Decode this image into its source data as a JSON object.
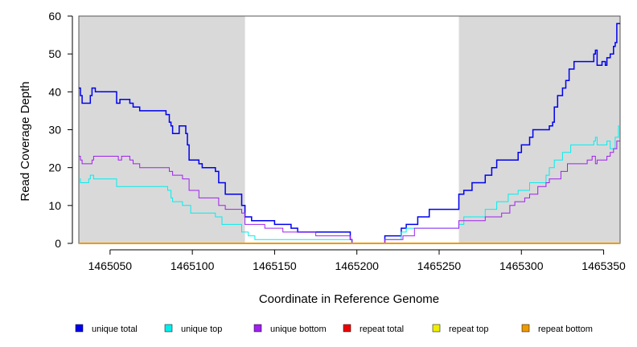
{
  "chart_data": {
    "type": "line",
    "title": "",
    "xlabel": "Coordinate in Reference Genome",
    "ylabel": "Read Coverage Depth",
    "xlim": [
      1465031,
      1465360
    ],
    "ylim": [
      0,
      60
    ],
    "x_ticks": [
      1465050,
      1465100,
      1465150,
      1465200,
      1465250,
      1465300,
      1465350
    ],
    "x_tick_labels": [
      "1465050",
      "1465100",
      "1465150",
      "1465200",
      "1465250",
      "1465300",
      "1465350"
    ],
    "y_ticks": [
      0,
      10,
      20,
      30,
      40,
      50,
      60
    ],
    "y_tick_labels": [
      "0",
      "10",
      "20",
      "30",
      "40",
      "50",
      "60"
    ],
    "shaded_regions": [
      [
        1465031,
        1465132
      ],
      [
        1465262,
        1465360
      ]
    ],
    "shade_color": "#d9d9d9",
    "legend": [
      {
        "name": "unique total",
        "color": "#0000ee"
      },
      {
        "name": "unique top",
        "color": "#00eeee"
      },
      {
        "name": "unique bottom",
        "color": "#a020f0"
      },
      {
        "name": "repeat total",
        "color": "#ee0000"
      },
      {
        "name": "repeat top",
        "color": "#eeee00"
      },
      {
        "name": "repeat bottom",
        "color": "#ee9a00"
      }
    ],
    "series": [
      {
        "name": "unique total",
        "color": "#0000ee",
        "width": 1.5,
        "points": [
          [
            1465031,
            41
          ],
          [
            1465032,
            39
          ],
          [
            1465033,
            37
          ],
          [
            1465038,
            39
          ],
          [
            1465039,
            41
          ],
          [
            1465041,
            40
          ],
          [
            1465054,
            37
          ],
          [
            1465056,
            38
          ],
          [
            1465062,
            37
          ],
          [
            1465064,
            36
          ],
          [
            1465068,
            35
          ],
          [
            1465084,
            34
          ],
          [
            1465086,
            32
          ],
          [
            1465087,
            31
          ],
          [
            1465088,
            29
          ],
          [
            1465092,
            31
          ],
          [
            1465096,
            29
          ],
          [
            1465097,
            26
          ],
          [
            1465098,
            22
          ],
          [
            1465104,
            21
          ],
          [
            1465106,
            20
          ],
          [
            1465114,
            19
          ],
          [
            1465116,
            16
          ],
          [
            1465120,
            13
          ],
          [
            1465130,
            10
          ],
          [
            1465132,
            7
          ],
          [
            1465136,
            6
          ],
          [
            1465150,
            5
          ],
          [
            1465160,
            4
          ],
          [
            1465164,
            3
          ],
          [
            1465196,
            1
          ],
          [
            1465197,
            0
          ],
          [
            1465214,
            0
          ],
          [
            1465217,
            2
          ],
          [
            1465227,
            4
          ],
          [
            1465230,
            5
          ],
          [
            1465237,
            7
          ],
          [
            1465244,
            9
          ],
          [
            1465262,
            13
          ],
          [
            1465265,
            14
          ],
          [
            1465270,
            16
          ],
          [
            1465278,
            18
          ],
          [
            1465282,
            20
          ],
          [
            1465285,
            22
          ],
          [
            1465298,
            24
          ],
          [
            1465300,
            26
          ],
          [
            1465305,
            28
          ],
          [
            1465307,
            30
          ],
          [
            1465317,
            31
          ],
          [
            1465319,
            32
          ],
          [
            1465320,
            36
          ],
          [
            1465322,
            39
          ],
          [
            1465325,
            41
          ],
          [
            1465327,
            43
          ],
          [
            1465329,
            46
          ],
          [
            1465332,
            48
          ],
          [
            1465344,
            50
          ],
          [
            1465345,
            51
          ],
          [
            1465346,
            47
          ],
          [
            1465349,
            48
          ],
          [
            1465351,
            47
          ],
          [
            1465352,
            49
          ],
          [
            1465354,
            50
          ],
          [
            1465356,
            52
          ],
          [
            1465357,
            53
          ],
          [
            1465358,
            58
          ],
          [
            1465360,
            58
          ]
        ]
      },
      {
        "name": "unique top",
        "color": "#00eeee",
        "width": 1,
        "points": [
          [
            1465031,
            17
          ],
          [
            1465032,
            16
          ],
          [
            1465037,
            17
          ],
          [
            1465038,
            18
          ],
          [
            1465040,
            17
          ],
          [
            1465054,
            15
          ],
          [
            1465085,
            14
          ],
          [
            1465087,
            12
          ],
          [
            1465088,
            11
          ],
          [
            1465094,
            10
          ],
          [
            1465099,
            8
          ],
          [
            1465114,
            7
          ],
          [
            1465118,
            5
          ],
          [
            1465130,
            3
          ],
          [
            1465134,
            2
          ],
          [
            1465138,
            1
          ],
          [
            1465195,
            1
          ],
          [
            1465197,
            0
          ],
          [
            1465214,
            0
          ],
          [
            1465217,
            1
          ],
          [
            1465227,
            3
          ],
          [
            1465230,
            4
          ],
          [
            1465262,
            5
          ],
          [
            1465265,
            7
          ],
          [
            1465278,
            9
          ],
          [
            1465285,
            11
          ],
          [
            1465292,
            13
          ],
          [
            1465298,
            14
          ],
          [
            1465305,
            16
          ],
          [
            1465315,
            18
          ],
          [
            1465317,
            20
          ],
          [
            1465320,
            22
          ],
          [
            1465325,
            24
          ],
          [
            1465330,
            26
          ],
          [
            1465344,
            27
          ],
          [
            1465345,
            28
          ],
          [
            1465346,
            26
          ],
          [
            1465352,
            27
          ],
          [
            1465354,
            25
          ],
          [
            1465357,
            28
          ],
          [
            1465359,
            31
          ],
          [
            1465360,
            31
          ]
        ]
      },
      {
        "name": "unique bottom",
        "color": "#a020f0",
        "width": 1,
        "points": [
          [
            1465031,
            23
          ],
          [
            1465032,
            22
          ],
          [
            1465033,
            21
          ],
          [
            1465039,
            22
          ],
          [
            1465040,
            23
          ],
          [
            1465055,
            22
          ],
          [
            1465057,
            23
          ],
          [
            1465062,
            22
          ],
          [
            1465064,
            21
          ],
          [
            1465068,
            20
          ],
          [
            1465085,
            20
          ],
          [
            1465086,
            19
          ],
          [
            1465088,
            18
          ],
          [
            1465094,
            17
          ],
          [
            1465098,
            14
          ],
          [
            1465104,
            12
          ],
          [
            1465116,
            10
          ],
          [
            1465120,
            9
          ],
          [
            1465130,
            8
          ],
          [
            1465132,
            5
          ],
          [
            1465144,
            4
          ],
          [
            1465155,
            3
          ],
          [
            1465175,
            2
          ],
          [
            1465196,
            1
          ],
          [
            1465197,
            0
          ],
          [
            1465214,
            0
          ],
          [
            1465217,
            1
          ],
          [
            1465228,
            2
          ],
          [
            1465235,
            4
          ],
          [
            1465262,
            6
          ],
          [
            1465278,
            7
          ],
          [
            1465288,
            8
          ],
          [
            1465293,
            10
          ],
          [
            1465296,
            11
          ],
          [
            1465302,
            12
          ],
          [
            1465305,
            13
          ],
          [
            1465310,
            15
          ],
          [
            1465315,
            16
          ],
          [
            1465317,
            17
          ],
          [
            1465324,
            19
          ],
          [
            1465328,
            21
          ],
          [
            1465340,
            22
          ],
          [
            1465343,
            23
          ],
          [
            1465345,
            21
          ],
          [
            1465346,
            22
          ],
          [
            1465352,
            23
          ],
          [
            1465354,
            24
          ],
          [
            1465356,
            25
          ],
          [
            1465358,
            27
          ],
          [
            1465360,
            27
          ]
        ]
      },
      {
        "name": "repeat total",
        "color": "#ee0000",
        "width": 1,
        "points": [
          [
            1465031,
            0
          ],
          [
            1465360,
            0
          ]
        ]
      },
      {
        "name": "repeat top",
        "color": "#eeee00",
        "width": 1,
        "points": [
          [
            1465031,
            0
          ],
          [
            1465360,
            0
          ]
        ]
      },
      {
        "name": "repeat bottom",
        "color": "#ee9a00",
        "width": 2,
        "points": [
          [
            1465031,
            0
          ],
          [
            1465360,
            0
          ]
        ]
      }
    ]
  }
}
